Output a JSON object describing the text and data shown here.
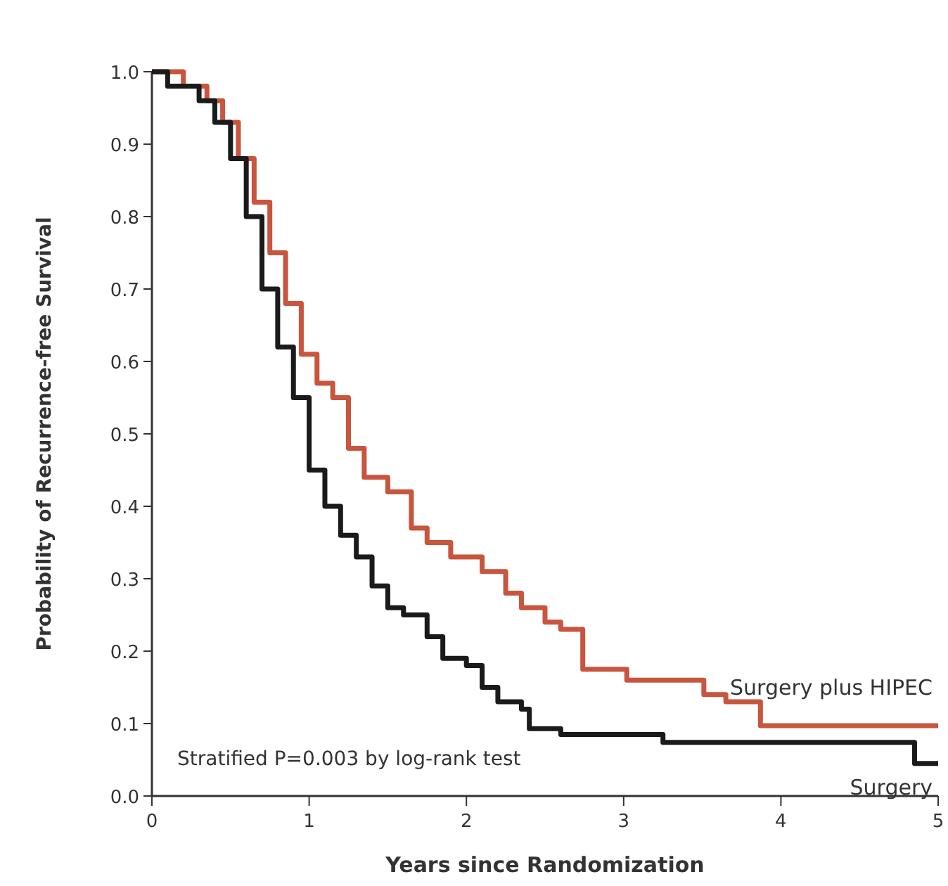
{
  "chart_data": {
    "type": "step",
    "xlabel": "Years since Randomization",
    "ylabel": "Probability of Recurrence-free Survival",
    "xlim": [
      0,
      5
    ],
    "ylim": [
      0,
      1
    ],
    "xticks": [
      0,
      1,
      2,
      3,
      4,
      5
    ],
    "yticks": [
      {
        "value": 0,
        "label": "0.0"
      },
      0.1,
      0.2,
      0.3,
      0.4,
      0.5,
      0.6,
      0.7,
      0.8,
      0.9,
      {
        "value": 1,
        "label": "1.0"
      }
    ],
    "grid": false,
    "marker": "none",
    "line_style": "solid",
    "annotations": [
      "Stratified P=0.003 by log-rank test"
    ],
    "series": [
      {
        "name": "Surgery plus HIPEC",
        "color": "#c8553d",
        "x": [
          0,
          0.2,
          0.35,
          0.45,
          0.55,
          0.65,
          0.75,
          0.85,
          0.95,
          1.05,
          1.15,
          1.25,
          1.35,
          1.5,
          1.65,
          1.75,
          1.9,
          2.1,
          2.25,
          2.35,
          2.5,
          2.6,
          2.74,
          3.02,
          3.51,
          3.65,
          3.87,
          5
        ],
        "values": [
          1,
          0.98,
          0.96,
          0.93,
          0.88,
          0.82,
          0.75,
          0.68,
          0.61,
          0.57,
          0.55,
          0.48,
          0.44,
          0.42,
          0.37,
          0.35,
          0.33,
          0.31,
          0.28,
          0.26,
          0.24,
          0.23,
          0.175,
          0.16,
          0.14,
          0.13,
          0.097,
          0.097
        ]
      },
      {
        "name": "Surgery",
        "color": "#1a1a1a",
        "x": [
          0,
          0.1,
          0.3,
          0.4,
          0.5,
          0.6,
          0.7,
          0.8,
          0.9,
          1,
          1.1,
          1.2,
          1.3,
          1.4,
          1.5,
          1.6,
          1.75,
          1.85,
          2,
          2.1,
          2.2,
          2.35,
          2.4,
          2.6,
          3.25,
          4.85,
          5
        ],
        "values": [
          1,
          0.98,
          0.96,
          0.93,
          0.88,
          0.8,
          0.7,
          0.62,
          0.55,
          0.45,
          0.4,
          0.36,
          0.33,
          0.29,
          0.26,
          0.25,
          0.22,
          0.19,
          0.18,
          0.15,
          0.13,
          0.12,
          0.093,
          0.085,
          0.074,
          0.045,
          0.045
        ]
      }
    ]
  }
}
